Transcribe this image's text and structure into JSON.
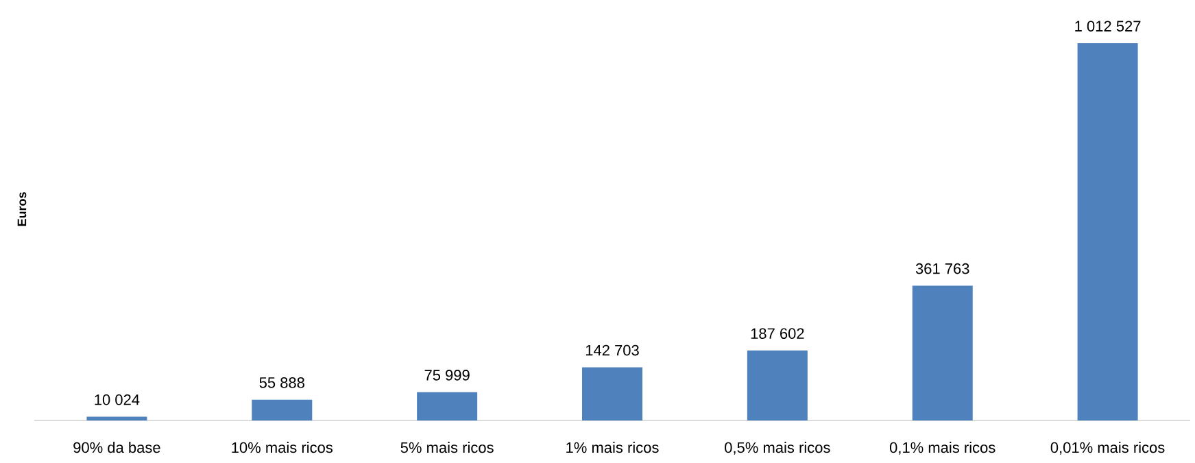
{
  "chart_data": {
    "type": "bar",
    "ylabel": "Euros",
    "categories": [
      "90% da base",
      "10% mais ricos",
      "5% mais ricos",
      "1% mais ricos",
      "0,5% mais ricos",
      "0,1% mais ricos",
      "0,01% mais ricos"
    ],
    "values": [
      10024,
      55888,
      75999,
      142703,
      187602,
      361763,
      1012527
    ],
    "value_labels": [
      "10 024",
      "55 888",
      "75 999",
      "142 703",
      "187 602",
      "361 763",
      "1 012 527"
    ],
    "color": "#4f81bd"
  }
}
